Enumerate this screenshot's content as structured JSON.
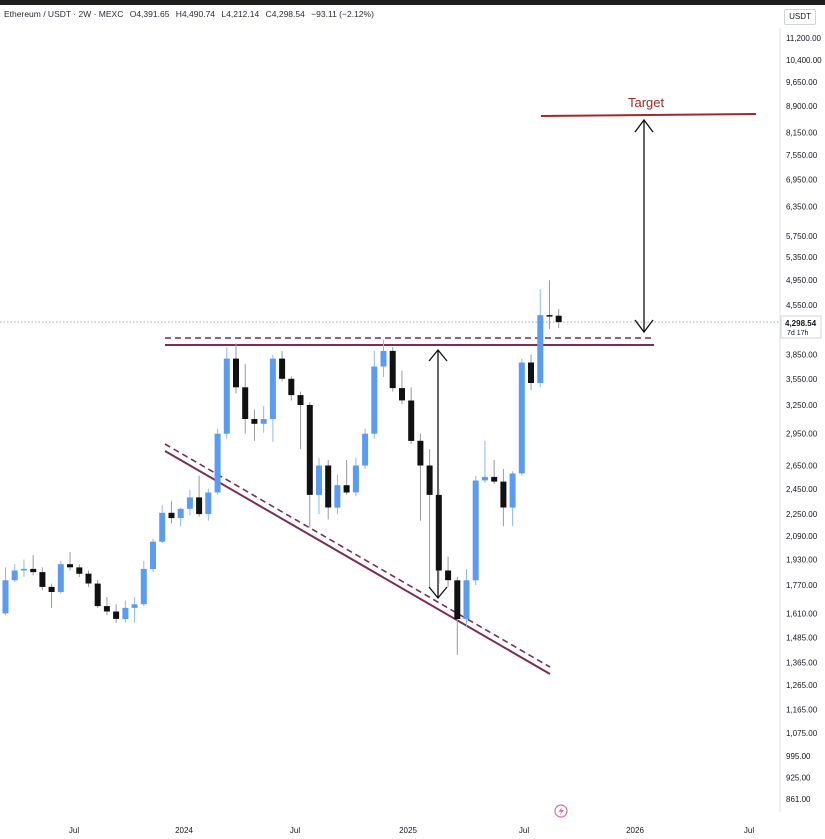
{
  "header": {
    "symbol": "Ethereum / USDT · 2W · MEXC",
    "open": "O4,391.65",
    "high": "H4,490.74",
    "low": "L4,212.14",
    "close": "C4,298.54",
    "change": "−93.11 (−2.12%)"
  },
  "currency_label": "USDT",
  "price_label": {
    "value": "4,298.54",
    "countdown": "7d 17h"
  },
  "target_label": "Target",
  "colors": {
    "up": "#5b9cf0",
    "down": "#111111",
    "pattern": "#7a2e55",
    "target": "#a32a2a"
  },
  "chart_data": {
    "type": "candlestick",
    "interval": "2W",
    "scale": "log",
    "ylim": [
      810,
      12000
    ],
    "y_ticks": [
      "11,200.00",
      "10,400.00",
      "9,650.00",
      "8,900.00",
      "8,150.00",
      "7,550.00",
      "6,950.00",
      "6,350.00",
      "5,750.00",
      "5,350.00",
      "4,950.00",
      "4,550.00",
      "3,850.00",
      "3,550.00",
      "3,250.00",
      "2,950.00",
      "2,650.00",
      "2,450.00",
      "2,250.00",
      "2,090.00",
      "1,930.00",
      "1,770.00",
      "1,610.00",
      "1,485.00",
      "1,365.00",
      "1,265.00",
      "1,165.00",
      "1,075.00",
      "995.00",
      "925.00",
      "861.00"
    ],
    "x_ticks": [
      "Jul",
      "2024",
      "Jul",
      "2025",
      "Jul",
      "2026",
      "Jul"
    ],
    "candles": [
      {
        "o": 1610,
        "h": 1880,
        "l": 1600,
        "c": 1800
      },
      {
        "o": 1800,
        "h": 1900,
        "l": 1790,
        "c": 1860
      },
      {
        "o": 1860,
        "h": 1930,
        "l": 1820,
        "c": 1870
      },
      {
        "o": 1870,
        "h": 1960,
        "l": 1830,
        "c": 1850
      },
      {
        "o": 1850,
        "h": 1880,
        "l": 1740,
        "c": 1760
      },
      {
        "o": 1760,
        "h": 1780,
        "l": 1640,
        "c": 1730
      },
      {
        "o": 1730,
        "h": 1920,
        "l": 1720,
        "c": 1900
      },
      {
        "o": 1900,
        "h": 1980,
        "l": 1860,
        "c": 1880
      },
      {
        "o": 1880,
        "h": 1900,
        "l": 1820,
        "c": 1840
      },
      {
        "o": 1840,
        "h": 1860,
        "l": 1760,
        "c": 1780
      },
      {
        "o": 1780,
        "h": 1800,
        "l": 1640,
        "c": 1650
      },
      {
        "o": 1650,
        "h": 1700,
        "l": 1600,
        "c": 1620
      },
      {
        "o": 1620,
        "h": 1660,
        "l": 1560,
        "c": 1580
      },
      {
        "o": 1580,
        "h": 1680,
        "l": 1560,
        "c": 1640
      },
      {
        "o": 1640,
        "h": 1700,
        "l": 1560,
        "c": 1660
      },
      {
        "o": 1660,
        "h": 1920,
        "l": 1650,
        "c": 1870
      },
      {
        "o": 1870,
        "h": 2070,
        "l": 1850,
        "c": 2050
      },
      {
        "o": 2050,
        "h": 2320,
        "l": 2040,
        "c": 2260
      },
      {
        "o": 2260,
        "h": 2350,
        "l": 2180,
        "c": 2220
      },
      {
        "o": 2220,
        "h": 2300,
        "l": 2160,
        "c": 2290
      },
      {
        "o": 2290,
        "h": 2440,
        "l": 2240,
        "c": 2380
      },
      {
        "o": 2380,
        "h": 2560,
        "l": 2230,
        "c": 2250
      },
      {
        "o": 2250,
        "h": 2450,
        "l": 2200,
        "c": 2420
      },
      {
        "o": 2420,
        "h": 3000,
        "l": 2400,
        "c": 2950
      },
      {
        "o": 2950,
        "h": 3950,
        "l": 2900,
        "c": 3800
      },
      {
        "o": 3800,
        "h": 4000,
        "l": 3380,
        "c": 3450
      },
      {
        "o": 3450,
        "h": 3730,
        "l": 2950,
        "c": 3100
      },
      {
        "o": 3100,
        "h": 3200,
        "l": 2880,
        "c": 3050
      },
      {
        "o": 3050,
        "h": 3240,
        "l": 2960,
        "c": 3100
      },
      {
        "o": 3100,
        "h": 3850,
        "l": 2870,
        "c": 3800
      },
      {
        "o": 3800,
        "h": 3900,
        "l": 3520,
        "c": 3550
      },
      {
        "o": 3550,
        "h": 3580,
        "l": 3300,
        "c": 3360
      },
      {
        "o": 3360,
        "h": 3400,
        "l": 2800,
        "c": 3250
      },
      {
        "o": 3250,
        "h": 3280,
        "l": 2150,
        "c": 2400
      },
      {
        "o": 2400,
        "h": 2720,
        "l": 2250,
        "c": 2650
      },
      {
        "o": 2650,
        "h": 2700,
        "l": 2210,
        "c": 2300
      },
      {
        "o": 2300,
        "h": 2570,
        "l": 2250,
        "c": 2480
      },
      {
        "o": 2480,
        "h": 2700,
        "l": 2400,
        "c": 2420
      },
      {
        "o": 2420,
        "h": 2720,
        "l": 2390,
        "c": 2650
      },
      {
        "o": 2650,
        "h": 3000,
        "l": 2620,
        "c": 2950
      },
      {
        "o": 2950,
        "h": 3900,
        "l": 2900,
        "c": 3700
      },
      {
        "o": 3700,
        "h": 4050,
        "l": 3570,
        "c": 3900
      },
      {
        "o": 3900,
        "h": 3950,
        "l": 3400,
        "c": 3440
      },
      {
        "o": 3440,
        "h": 3650,
        "l": 3260,
        "c": 3300
      },
      {
        "o": 3300,
        "h": 3450,
        "l": 2850,
        "c": 2880
      },
      {
        "o": 2880,
        "h": 2950,
        "l": 2200,
        "c": 2650
      },
      {
        "o": 2650,
        "h": 2800,
        "l": 1760,
        "c": 2400
      },
      {
        "o": 2400,
        "h": 2450,
        "l": 1780,
        "c": 1860
      },
      {
        "o": 1860,
        "h": 1950,
        "l": 1760,
        "c": 1800
      },
      {
        "o": 1800,
        "h": 1820,
        "l": 1400,
        "c": 1580
      },
      {
        "o": 1580,
        "h": 1870,
        "l": 1540,
        "c": 1800
      },
      {
        "o": 1800,
        "h": 2560,
        "l": 1770,
        "c": 2520
      },
      {
        "o": 2520,
        "h": 2880,
        "l": 2500,
        "c": 2550
      },
      {
        "o": 2550,
        "h": 2700,
        "l": 2490,
        "c": 2510
      },
      {
        "o": 2510,
        "h": 2620,
        "l": 2160,
        "c": 2300
      },
      {
        "o": 2300,
        "h": 2600,
        "l": 2160,
        "c": 2580
      },
      {
        "o": 2580,
        "h": 3800,
        "l": 2560,
        "c": 3750
      },
      {
        "o": 3750,
        "h": 3850,
        "l": 3420,
        "c": 3500
      },
      {
        "o": 3500,
        "h": 4800,
        "l": 3450,
        "c": 4400
      },
      {
        "o": 4400,
        "h": 4950,
        "l": 4200,
        "c": 4391.65
      },
      {
        "o": 4391.65,
        "h": 4490.74,
        "l": 4212.14,
        "c": 4298.54
      }
    ],
    "current_price": 4298.54,
    "target_price": 8700,
    "resistance_price": 3950
  }
}
